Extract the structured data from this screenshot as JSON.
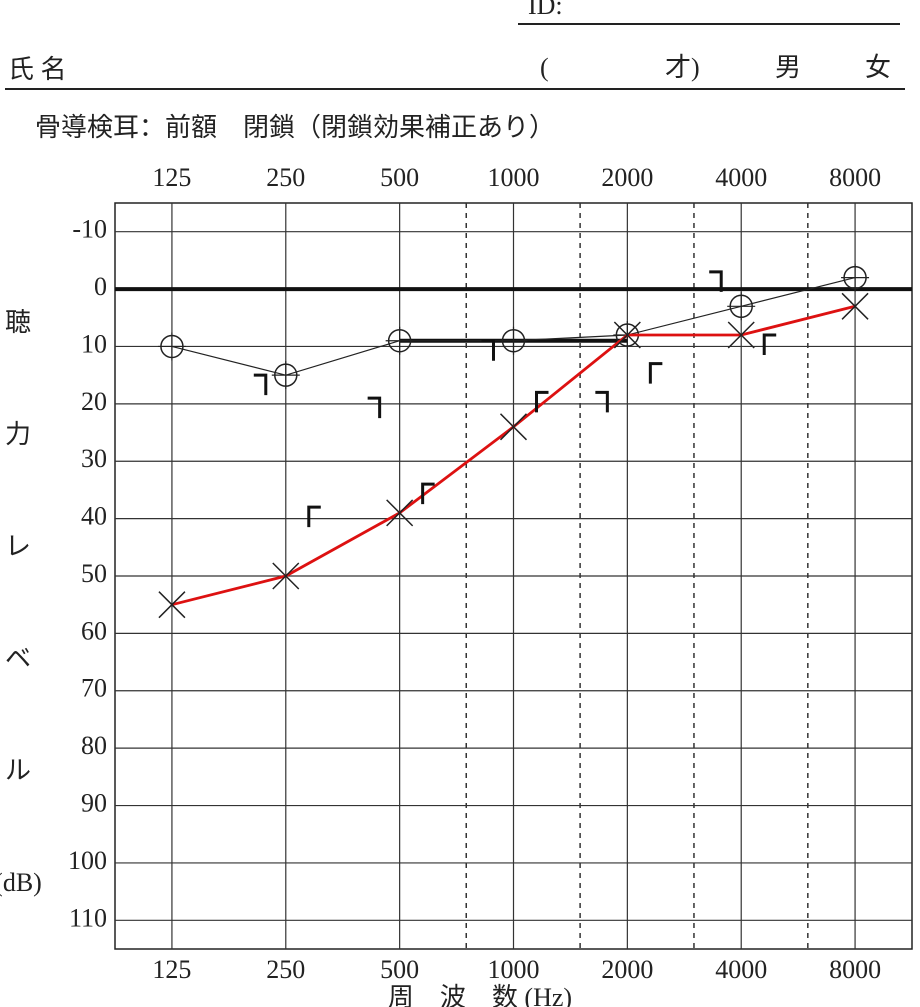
{
  "header": {
    "id_label": "ID:",
    "name_label": "氏 名",
    "age_open": "(",
    "age_close": "才)",
    "male": "男",
    "female": "女"
  },
  "chart_data": {
    "type": "line",
    "title": "骨導検耳：前額　閉鎖（閉鎖効果補正あり）",
    "ylabel": [
      "聴",
      "力",
      "レ",
      "ベ",
      "ル",
      "(dB)"
    ],
    "xlabel": "周　波　数 (Hz)",
    "categories": [
      "125",
      "250",
      "500",
      "1000",
      "2000",
      "4000",
      "8000"
    ],
    "ylim": [
      -15,
      115
    ],
    "y_inverted": true,
    "yticks": [
      -10,
      0,
      10,
      20,
      30,
      40,
      50,
      60,
      70,
      80,
      90,
      100,
      110
    ],
    "grid": true,
    "reference_lines": [
      {
        "y": 0
      },
      {
        "y": 9,
        "from": 2,
        "to": 4
      }
    ],
    "series": [
      {
        "marker": "o",
        "color": "#222222",
        "connect": true,
        "values": [
          10,
          15,
          9,
          9,
          8,
          3,
          -2
        ]
      },
      {
        "marker": "x",
        "color": "#dd1111",
        "connect": true,
        "values": [
          55,
          50,
          39,
          24,
          8,
          8,
          3
        ]
      },
      {
        "marker": "bracket-right",
        "color": "#111111",
        "connect": false,
        "values": [
          null,
          15,
          19,
          9,
          18,
          -3,
          null
        ]
      },
      {
        "marker": "bracket-left",
        "color": "#111111",
        "connect": false,
        "values": [
          null,
          38,
          34,
          18,
          13,
          8,
          null
        ]
      }
    ]
  }
}
